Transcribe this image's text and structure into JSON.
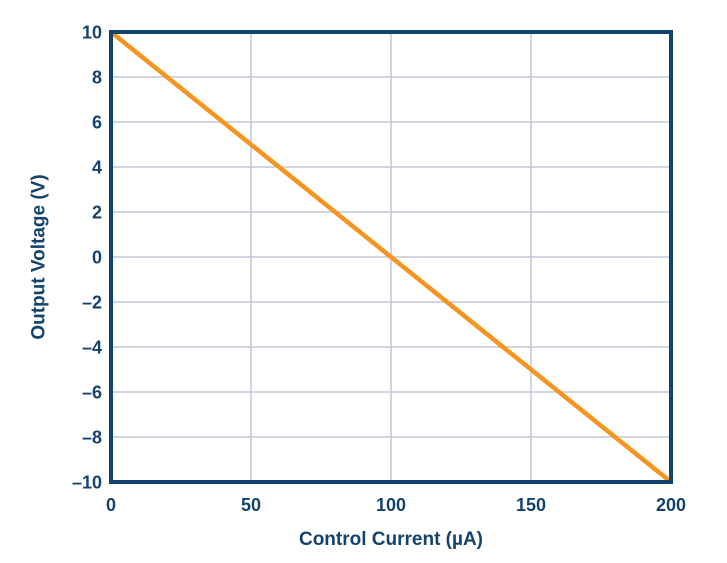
{
  "style": {
    "background": "#ffffff",
    "axis_color": "#14436e",
    "text_color": "#14436e",
    "grid_color": "#c2c7d5",
    "line_color": "#f5941e"
  },
  "chart_data": {
    "type": "line",
    "title": "",
    "xlabel": "Control Current (µA)",
    "ylabel": "Output Voltage (V)",
    "xlim": [
      0,
      200
    ],
    "ylim": [
      -10,
      10
    ],
    "grid": true,
    "legend_position": "none",
    "xticks": [
      {
        "value": 0,
        "label": "0"
      },
      {
        "value": 50,
        "label": "50"
      },
      {
        "value": 100,
        "label": "100"
      },
      {
        "value": 150,
        "label": "150"
      },
      {
        "value": 200,
        "label": "200"
      }
    ],
    "yticks": [
      {
        "value": 10,
        "label": "10"
      },
      {
        "value": 8,
        "label": "8"
      },
      {
        "value": 6,
        "label": "6"
      },
      {
        "value": 4,
        "label": "4"
      },
      {
        "value": 2,
        "label": "2"
      },
      {
        "value": 0,
        "label": "0"
      },
      {
        "value": -2,
        "label": "–2"
      },
      {
        "value": -4,
        "label": "–4"
      },
      {
        "value": -6,
        "label": "–6"
      },
      {
        "value": -8,
        "label": "–8"
      },
      {
        "value": -10,
        "label": "–10"
      }
    ],
    "series": [
      {
        "name": "Output Voltage",
        "color": "#f5941e",
        "points": [
          [
            0,
            10
          ],
          [
            200,
            -10
          ]
        ]
      }
    ]
  }
}
